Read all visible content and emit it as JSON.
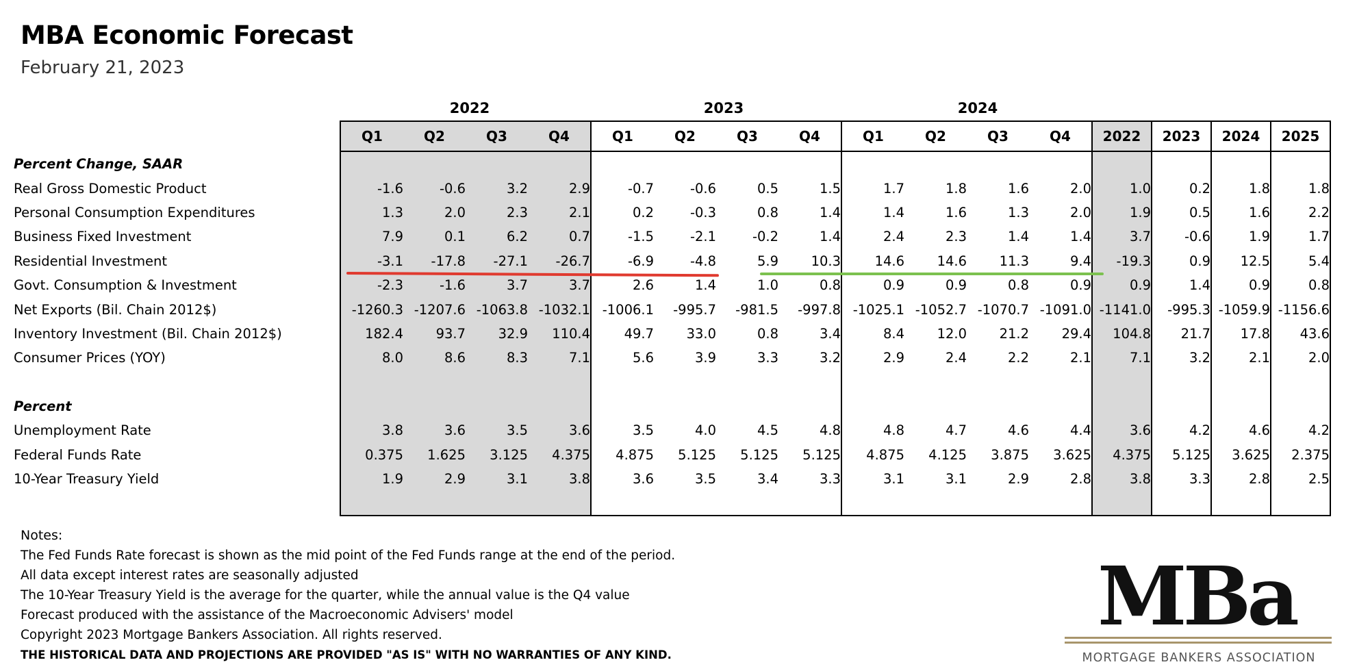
{
  "title": "MBA Economic Forecast",
  "date": "February 21, 2023",
  "year_groups": [
    "2022",
    "2023",
    "2024"
  ],
  "columns": [
    "Q1",
    "Q2",
    "Q3",
    "Q4",
    "Q1",
    "Q2",
    "Q3",
    "Q4",
    "Q1",
    "Q2",
    "Q3",
    "Q4",
    "2022",
    "2023",
    "2024",
    "2025"
  ],
  "sections": [
    {
      "heading": "Percent Change, SAAR",
      "rows": [
        {
          "label": "Real Gross Domestic Product",
          "values": [
            "-1.6",
            "-0.6",
            "3.2",
            "2.9",
            "-0.7",
            "-0.6",
            "0.5",
            "1.5",
            "1.7",
            "1.8",
            "1.6",
            "2.0",
            "1.0",
            "0.2",
            "1.8",
            "1.8"
          ]
        },
        {
          "label": "Personal Consumption Expenditures",
          "values": [
            "1.3",
            "2.0",
            "2.3",
            "2.1",
            "0.2",
            "-0.3",
            "0.8",
            "1.4",
            "1.4",
            "1.6",
            "1.3",
            "2.0",
            "1.9",
            "0.5",
            "1.6",
            "2.2"
          ]
        },
        {
          "label": "Business Fixed Investment",
          "values": [
            "7.9",
            "0.1",
            "6.2",
            "0.7",
            "-1.5",
            "-2.1",
            "-0.2",
            "1.4",
            "2.4",
            "2.3",
            "1.4",
            "1.4",
            "3.7",
            "-0.6",
            "1.9",
            "1.7"
          ]
        },
        {
          "label": "Residential Investment",
          "values": [
            "-3.1",
            "-17.8",
            "-27.1",
            "-26.7",
            "-6.9",
            "-4.8",
            "5.9",
            "10.3",
            "14.6",
            "14.6",
            "11.3",
            "9.4",
            "-19.3",
            "0.9",
            "12.5",
            "5.4"
          ]
        },
        {
          "label": "Govt. Consumption & Investment",
          "values": [
            "-2.3",
            "-1.6",
            "3.7",
            "3.7",
            "2.6",
            "1.4",
            "1.0",
            "0.8",
            "0.9",
            "0.9",
            "0.8",
            "0.9",
            "0.9",
            "1.4",
            "0.9",
            "0.8"
          ]
        },
        {
          "label": "Net Exports (Bil. Chain 2012$)",
          "values": [
            "-1260.3",
            "-1207.6",
            "-1063.8",
            "-1032.1",
            "-1006.1",
            "-995.7",
            "-981.5",
            "-997.8",
            "-1025.1",
            "-1052.7",
            "-1070.7",
            "-1091.0",
            "-1141.0",
            "-995.3",
            "-1059.9",
            "-1156.6"
          ]
        },
        {
          "label": "Inventory Investment (Bil. Chain 2012$)",
          "values": [
            "182.4",
            "93.7",
            "32.9",
            "110.4",
            "49.7",
            "33.0",
            "0.8",
            "3.4",
            "8.4",
            "12.0",
            "21.2",
            "29.4",
            "104.8",
            "21.7",
            "17.8",
            "43.6"
          ]
        },
        {
          "label": "Consumer Prices (YOY)",
          "values": [
            "8.0",
            "8.6",
            "8.3",
            "7.1",
            "5.6",
            "3.9",
            "3.3",
            "3.2",
            "2.9",
            "2.4",
            "2.2",
            "2.1",
            "7.1",
            "3.2",
            "2.1",
            "2.0"
          ]
        }
      ]
    },
    {
      "heading": "Percent",
      "rows": [
        {
          "label": "Unemployment Rate",
          "values": [
            "3.8",
            "3.6",
            "3.5",
            "3.6",
            "3.5",
            "4.0",
            "4.5",
            "4.8",
            "4.8",
            "4.7",
            "4.6",
            "4.4",
            "3.6",
            "4.2",
            "4.6",
            "4.2"
          ]
        },
        {
          "label": "Federal Funds Rate",
          "values": [
            "0.375",
            "1.625",
            "3.125",
            "4.375",
            "4.875",
            "5.125",
            "5.125",
            "5.125",
            "4.875",
            "4.125",
            "3.875",
            "3.625",
            "4.375",
            "5.125",
            "3.625",
            "2.375"
          ]
        },
        {
          "label": "10-Year Treasury Yield",
          "values": [
            "1.9",
            "2.9",
            "3.1",
            "3.8",
            "3.6",
            "3.5",
            "3.4",
            "3.3",
            "3.1",
            "3.1",
            "2.9",
            "2.8",
            "3.8",
            "3.3",
            "2.8",
            "2.5"
          ]
        }
      ]
    }
  ],
  "notes": {
    "heading": "Notes:",
    "lines": [
      "The Fed Funds Rate forecast is shown as the mid point of the Fed Funds range at the end of the period.",
      "All data except interest rates are seasonally adjusted",
      "The 10-Year Treasury Yield is the average for the quarter, while the annual value is the Q4 value",
      "Forecast produced with the assistance of the Macroeconomic Advisers' model",
      "Copyright 2023 Mortgage Bankers Association.  All rights reserved."
    ],
    "disclaimer": "THE HISTORICAL DATA AND PROJECTIONS ARE PROVIDED \"AS IS\" WITH NO WARRANTIES OF ANY KIND."
  },
  "logo": {
    "mark": "MBa",
    "subtitle": "MORTGAGE BANKERS ASSOCIATION",
    "accent": "#a8956b"
  },
  "annotation_colors": {
    "red": "#e03a2f",
    "green": "#7cc14f"
  }
}
